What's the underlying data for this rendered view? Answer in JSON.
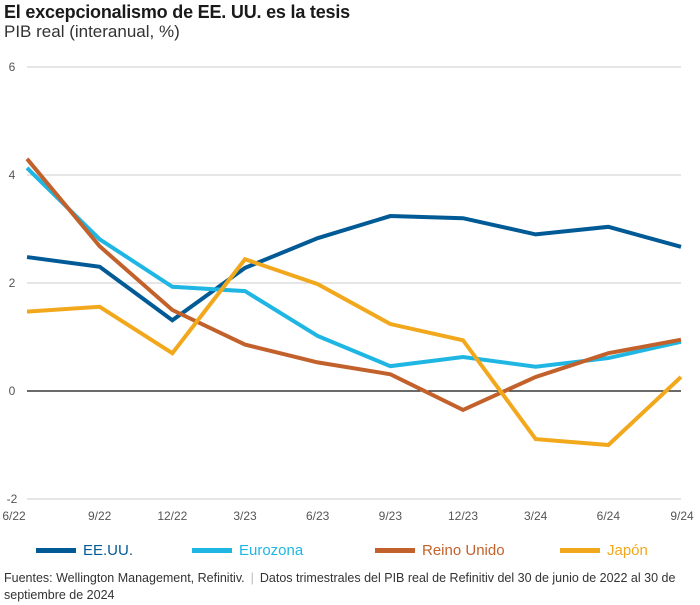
{
  "title": "El excepcionalismo de EE. UU. es la tesis",
  "subtitle": "PIB real (interanual, %)",
  "footer": {
    "sources": "Fuentes: Wellington Management, Refinitiv.",
    "separator": "|",
    "note": "Datos trimestrales del PIB real de Refinitiv del 30 de junio de 2022 al 30 de septiembre de 2024"
  },
  "chart_data": {
    "type": "line",
    "title": "El excepcionalismo de EE. UU. es la tesis",
    "subtitle": "PIB real (interanual, %)",
    "xlabel": "",
    "ylabel": "",
    "categories": [
      "6/22",
      "9/22",
      "12/22",
      "3/23",
      "6/23",
      "9/23",
      "12/23",
      "3/24",
      "6/24",
      "9/24"
    ],
    "ylim": [
      -2,
      6
    ],
    "yticks": [
      6,
      4,
      2,
      0,
      -2
    ],
    "ytick_labels": [
      "6",
      "4",
      "2",
      "0",
      "-2"
    ],
    "grid": true,
    "legend_position": "bottom",
    "series": [
      {
        "name": "EE.UU.",
        "color": "#005a96",
        "values": [
          2.48,
          2.3,
          1.31,
          2.28,
          2.83,
          3.24,
          3.2,
          2.9,
          3.04,
          2.67
        ]
      },
      {
        "name": "Eurozona",
        "color": "#1fb6e4",
        "values": [
          4.13,
          2.81,
          1.93,
          1.85,
          1.02,
          0.46,
          0.63,
          0.45,
          0.61,
          0.91
        ]
      },
      {
        "name": "Reino Unido",
        "color": "#c2612b",
        "values": [
          4.3,
          2.68,
          1.5,
          0.86,
          0.53,
          0.31,
          -0.35,
          0.26,
          0.7,
          0.95
        ]
      },
      {
        "name": "Japón",
        "color": "#f2a81d",
        "values": [
          1.47,
          1.56,
          0.7,
          2.44,
          1.98,
          1.24,
          0.94,
          -0.89,
          -1.0,
          0.26
        ]
      }
    ]
  }
}
